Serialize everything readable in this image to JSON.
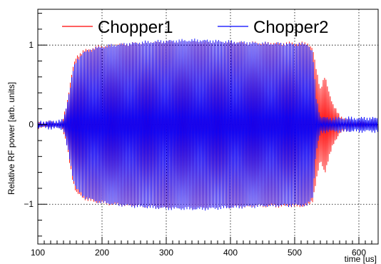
{
  "chart_data": {
    "type": "line",
    "title": "",
    "xlabel": "time [us]",
    "ylabel": "Relative RF power [arb. units]",
    "xlim": [
      100,
      630
    ],
    "ylim": [
      -1.5,
      1.45
    ],
    "x_ticks": [
      100,
      200,
      300,
      400,
      500,
      600
    ],
    "y_ticks": [
      -1,
      0,
      1
    ],
    "x_tick_labels": [
      "100",
      "200",
      "300",
      "400",
      "500",
      "600"
    ],
    "y_tick_labels": [
      "−1",
      "0",
      "1"
    ],
    "grid": true,
    "legend_position": "top",
    "oscillation_period_us": 2.2,
    "series": [
      {
        "name": "Chopper1",
        "color": "#ff0000",
        "envelope": {
          "x": [
            100,
            138,
            145,
            150,
            155,
            160,
            170,
            190,
            220,
            260,
            300,
            350,
            400,
            450,
            500,
            520,
            528,
            533,
            540,
            547,
            553,
            560,
            570,
            590,
            630
          ],
          "amplitude": [
            0.03,
            0.03,
            0.25,
            0.5,
            0.72,
            0.85,
            0.92,
            0.97,
            1.0,
            1.02,
            1.04,
            1.04,
            1.03,
            1.02,
            1.02,
            1.02,
            0.95,
            0.72,
            0.45,
            0.6,
            0.42,
            0.25,
            0.1,
            0.05,
            0.04
          ]
        }
      },
      {
        "name": "Chopper2",
        "color": "#0000ff",
        "envelope": {
          "x": [
            100,
            140,
            150,
            155,
            160,
            170,
            190,
            220,
            260,
            300,
            350,
            400,
            450,
            500,
            520,
            528,
            533,
            540,
            550,
            570,
            600,
            630
          ],
          "amplitude": [
            0.03,
            0.05,
            0.45,
            0.68,
            0.8,
            0.9,
            0.96,
            1.0,
            1.03,
            1.05,
            1.06,
            1.04,
            1.02,
            1.01,
            1.01,
            0.9,
            0.35,
            0.1,
            0.08,
            0.08,
            0.08,
            0.08
          ]
        }
      }
    ]
  }
}
